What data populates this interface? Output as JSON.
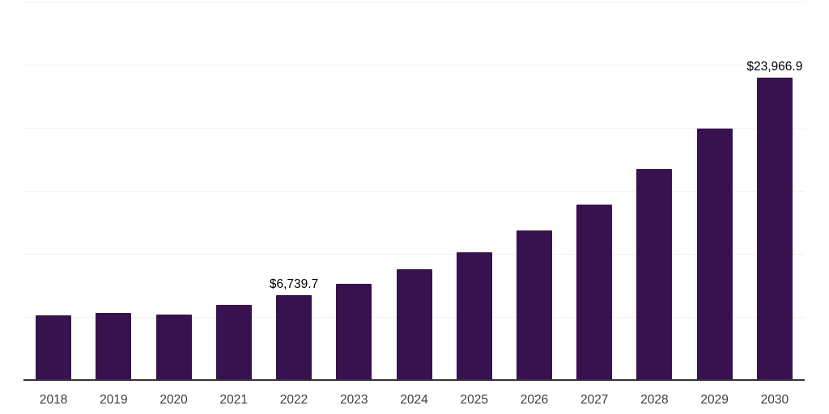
{
  "chart_data": {
    "type": "bar",
    "title": "",
    "xlabel": "",
    "ylabel": "",
    "categories": [
      "2018",
      "2019",
      "2020",
      "2021",
      "2022",
      "2023",
      "2024",
      "2025",
      "2026",
      "2027",
      "2028",
      "2029",
      "2030"
    ],
    "values": [
      5130,
      5340,
      5190,
      5980,
      6739.7,
      7650,
      8800,
      10150,
      11840,
      13930,
      16710,
      19920,
      23966.9
    ],
    "data_labels": [
      null,
      null,
      null,
      null,
      "$6,739.7",
      null,
      null,
      null,
      null,
      null,
      null,
      null,
      "$23,966.9"
    ],
    "ylim": [
      0,
      30000
    ],
    "grid_step": 5000,
    "grid": "horizontal-only",
    "legend": "none",
    "bar_color": "#38124F",
    "axis_color": "#333333",
    "grid_color": "#F1F1F1",
    "tick_label_color": "#3D3D3D",
    "data_label_color": "#000000"
  }
}
